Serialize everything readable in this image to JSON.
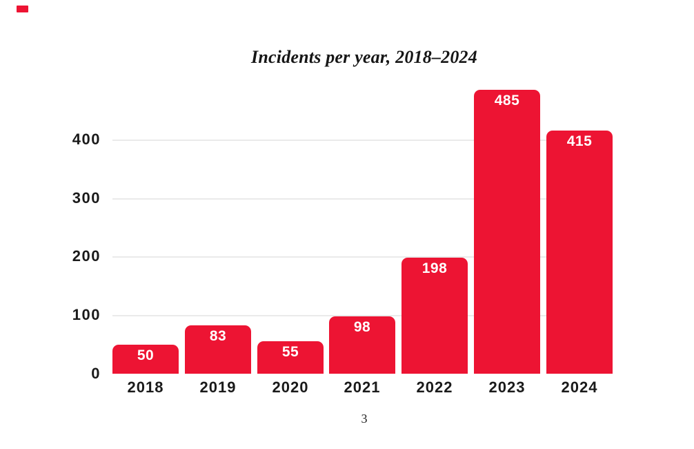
{
  "page": {
    "number": "3"
  },
  "accent": {
    "color": "#ed1433"
  },
  "chart_data": {
    "type": "bar",
    "title": "Incidents per year, 2018–2024",
    "categories": [
      "2018",
      "2019",
      "2020",
      "2021",
      "2022",
      "2023",
      "2024"
    ],
    "values": [
      50,
      83,
      55,
      98,
      198,
      485,
      415
    ],
    "bar_color": "#ed1433",
    "value_label_color": "#ffffff",
    "axis_label_color": "#1a1a1a",
    "gridline_color": "#eaeaea",
    "yticks": [
      0,
      100,
      200,
      300,
      400
    ],
    "ylim": [
      0,
      500
    ],
    "xlabel": "",
    "ylabel": "",
    "grid": "horizontal",
    "legend": "none"
  }
}
